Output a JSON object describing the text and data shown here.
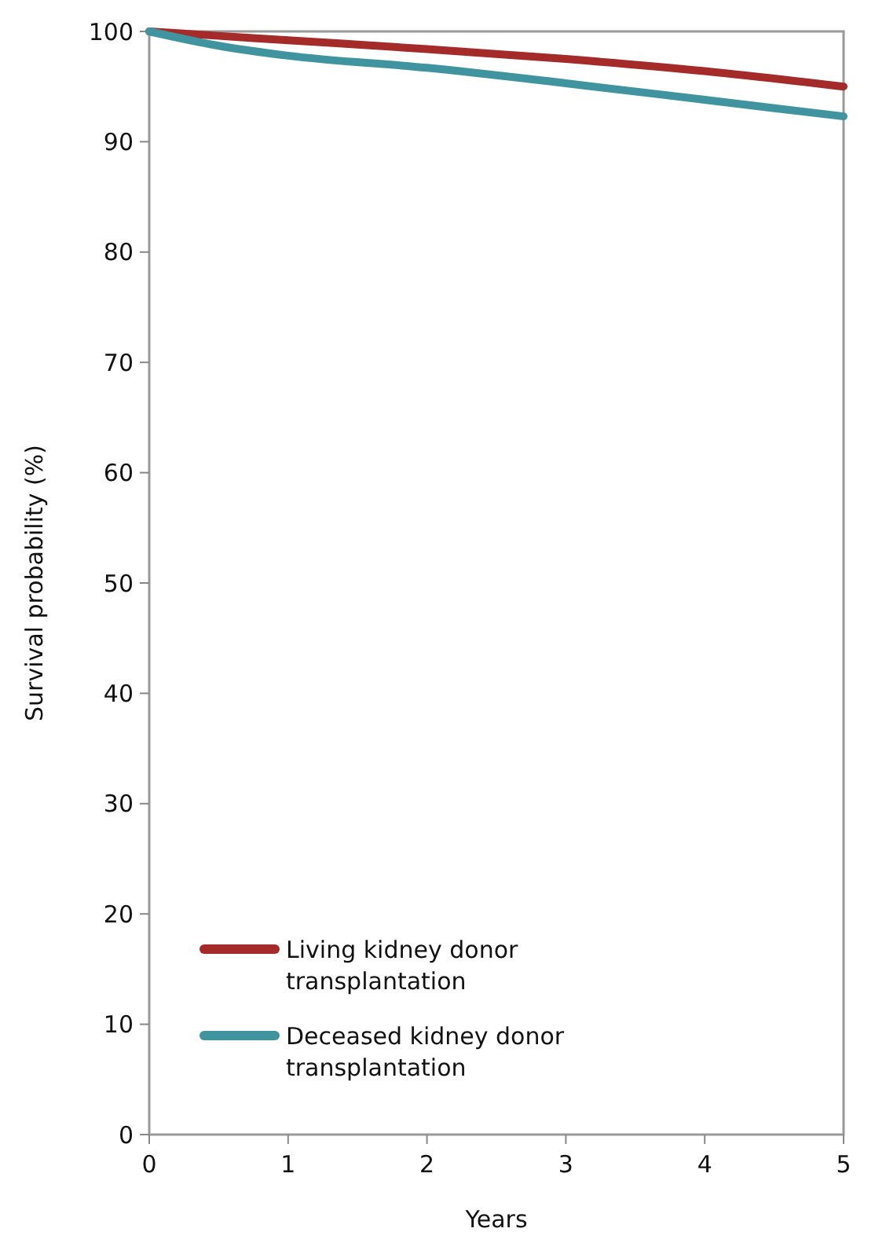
{
  "chart_data": {
    "type": "line",
    "xlabel": "Years",
    "ylabel": "Survival probability (%)",
    "x": [
      0,
      0.5,
      1,
      2,
      3,
      4,
      5
    ],
    "xlim": [
      0,
      5
    ],
    "xticks": [
      0,
      1,
      2,
      3,
      4,
      5
    ],
    "ylim": [
      0,
      100
    ],
    "yticks": [
      0,
      10,
      20,
      30,
      40,
      50,
      60,
      70,
      80,
      90,
      100
    ],
    "grid": false,
    "legend": "bottom left",
    "marker": "none",
    "line_style": "solid",
    "series": [
      {
        "name": "Living kidney donor transplantation",
        "color": "#a52a2a",
        "values": [
          100,
          99.6,
          99.2,
          98.4,
          97.5,
          96.4,
          95
        ]
      },
      {
        "name": "Deceased kidney donor transplantation",
        "color": "#3f949f",
        "values": [
          100,
          98.7,
          97.8,
          96.7,
          95.3,
          93.8,
          92.3
        ]
      }
    ]
  }
}
